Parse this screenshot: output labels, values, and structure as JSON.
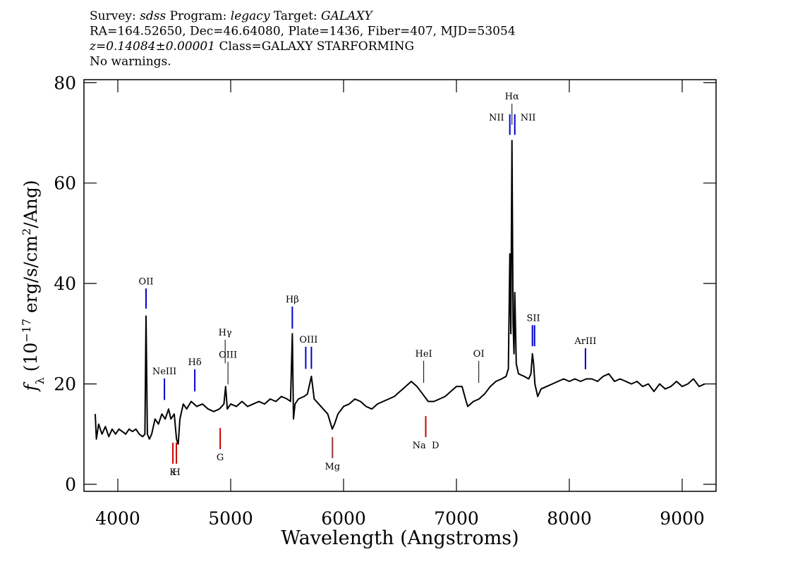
{
  "chart_data": {
    "type": "line",
    "header": [
      [
        {
          "text": "Survey: "
        },
        {
          "text": "sdss",
          "italic": true
        },
        {
          "text": " Program: "
        },
        {
          "text": "legacy",
          "italic": true
        },
        {
          "text": " Target: "
        },
        {
          "text": "GALAXY",
          "italic": true
        }
      ],
      [
        {
          "text": "RA=164.52650, Dec=46.64080, Plate=1436, Fiber=407, MJD=53054"
        }
      ],
      [
        {
          "text": "z=0.14084±0.00001",
          "italic": true
        },
        {
          "text": " Class=GALAXY STARFORMING"
        }
      ],
      [
        {
          "text": "No warnings."
        }
      ]
    ],
    "xlabel": "Wavelength (Angstroms)",
    "ylabel": [
      {
        "text": "f",
        "italic": true
      },
      {
        "text": "λ",
        "shift": "sub"
      },
      {
        "text": " (10"
      },
      {
        "text": "−17",
        "shift": "super"
      },
      {
        "text": " erg/s/cm"
      },
      {
        "text": "2",
        "shift": "super"
      },
      {
        "text": "/Ang)"
      }
    ],
    "xlim": [
      3700,
      9300
    ],
    "ylim": [
      -1.4,
      80.6
    ],
    "xticks": [
      4000,
      5000,
      6000,
      7000,
      8000,
      9000
    ],
    "yticks": [
      0,
      20,
      40,
      60,
      80
    ],
    "color": "#000000",
    "x": [
      3800,
      3810,
      3830,
      3860,
      3890,
      3920,
      3950,
      3980,
      4010,
      4040,
      4070,
      4100,
      4130,
      4160,
      4190,
      4220,
      4240,
      4250,
      4262,
      4280,
      4300,
      4330,
      4360,
      4390,
      4420,
      4450,
      4470,
      4500,
      4520,
      4535,
      4550,
      4580,
      4610,
      4650,
      4700,
      4750,
      4800,
      4850,
      4900,
      4940,
      4955,
      4970,
      5000,
      5050,
      5100,
      5150,
      5200,
      5250,
      5300,
      5350,
      5400,
      5450,
      5500,
      5530,
      5546,
      5556,
      5570,
      5600,
      5650,
      5680,
      5715,
      5740,
      5780,
      5820,
      5860,
      5900,
      5920,
      5950,
      6000,
      6050,
      6100,
      6150,
      6200,
      6250,
      6300,
      6350,
      6400,
      6450,
      6500,
      6550,
      6600,
      6650,
      6700,
      6750,
      6800,
      6850,
      6900,
      6950,
      7000,
      7050,
      7080,
      7100,
      7150,
      7200,
      7250,
      7300,
      7350,
      7400,
      7440,
      7460,
      7473,
      7482,
      7492,
      7502,
      7510,
      7517,
      7530,
      7550,
      7600,
      7640,
      7660,
      7673,
      7684,
      7695,
      7720,
      7750,
      7800,
      7850,
      7900,
      7950,
      8000,
      8050,
      8100,
      8150,
      8200,
      8250,
      8300,
      8350,
      8400,
      8450,
      8500,
      8550,
      8600,
      8650,
      8700,
      8750,
      8800,
      8850,
      8900,
      8950,
      9000,
      9050,
      9100,
      9150,
      9200
    ],
    "values": [
      14,
      9,
      12,
      10,
      11.5,
      9.5,
      11,
      10,
      11,
      10.5,
      10,
      11,
      10.5,
      11,
      10,
      9.5,
      10,
      33.5,
      10,
      9,
      10,
      13,
      12,
      14,
      13,
      15,
      13,
      14,
      9,
      8,
      13,
      16,
      15,
      16.5,
      15.5,
      16,
      15,
      14.5,
      15,
      16,
      19.5,
      15,
      16,
      15.5,
      16.5,
      15.5,
      16,
      16.5,
      16,
      17,
      16.5,
      17.5,
      17,
      16.5,
      30,
      13,
      16,
      17,
      17.5,
      18,
      21.5,
      17,
      16,
      15,
      14,
      11,
      12,
      14,
      15.5,
      16,
      17,
      16.5,
      15.5,
      15,
      16,
      16.5,
      17,
      17.5,
      18.5,
      19.5,
      20.5,
      19.5,
      18,
      16.5,
      16.5,
      17,
      17.5,
      18.5,
      19.5,
      19.5,
      17,
      15.5,
      16.5,
      17,
      18,
      19.5,
      20.5,
      21,
      21.5,
      23,
      45.9,
      30,
      68.5,
      32,
      26,
      38.2,
      24,
      22,
      21.5,
      21,
      22,
      26,
      24,
      20,
      17.5,
      19,
      19.5,
      20,
      20.5,
      21,
      20.5,
      21,
      20.5,
      21,
      21,
      20.5,
      21.5,
      22,
      20.5,
      21,
      20.5,
      20,
      20.5,
      19.5,
      20,
      18.5,
      20,
      19,
      19.5,
      20.5,
      19.5,
      20,
      21,
      19.5,
      20
    ],
    "lines": [
      {
        "label": "OII",
        "x": 4250,
        "y": [
          35.0,
          39.0
        ],
        "color": "#0000cc"
      },
      {
        "label": "NeIII",
        "x": 4413,
        "y": [
          16.8,
          21.1
        ],
        "color": "#0000cc"
      },
      {
        "label": "Hδ",
        "x": 4682,
        "y": [
          18.5,
          22.9
        ],
        "color": "#0000cc"
      },
      {
        "label": "Hγ",
        "x": 4951,
        "y": [
          24.1,
          28.8
        ],
        "color": "#000000"
      },
      {
        "label": "OIII",
        "x": 4976,
        "y": [
          19.9,
          24.4
        ],
        "color": "#000000"
      },
      {
        "label": "Hβ",
        "x": 5546,
        "y": [
          31.0,
          35.4
        ],
        "color": "#0000cc"
      },
      {
        "label": "OIII",
        "x": 5690,
        "x_marks": [
          5665,
          5715
        ],
        "y": [
          23.0,
          27.4
        ],
        "color": "#0000cc"
      },
      {
        "label": "HeI",
        "x": 6710,
        "y": [
          20.2,
          24.6
        ],
        "color": "#000000"
      },
      {
        "label": "OI",
        "x": 7198,
        "y": [
          20.2,
          24.6
        ],
        "color": "#000000"
      },
      {
        "label": "NII",
        "x": 7473,
        "y": [
          69.6,
          73.7
        ],
        "color": "#0000cc",
        "align": "left"
      },
      {
        "label": "Hα",
        "x": 7492,
        "y": [
          71.6,
          75.8
        ],
        "color": "#000000"
      },
      {
        "label": "NII",
        "x": 7517,
        "y": [
          69.6,
          73.7
        ],
        "color": "#0000cc",
        "align": "right"
      },
      {
        "label": "SII",
        "x": 7682,
        "x_marks": [
          7673,
          7692
        ],
        "y": [
          27.5,
          31.7
        ],
        "color": "#0000cc"
      },
      {
        "label": "ArIII",
        "x": 8143,
        "y": [
          22.9,
          27.1
        ],
        "color": "#0000cc"
      },
      {
        "label": "K",
        "x": 4488,
        "y": [
          4.1,
          8.3
        ],
        "color": "#cc0000",
        "absorption": true
      },
      {
        "label": "H",
        "x": 4519,
        "y": [
          4.1,
          8.3
        ],
        "color": "#cc0000",
        "absorption": true
      },
      {
        "label": "G",
        "x": 4907,
        "y": [
          7.0,
          11.2
        ],
        "color": "#cc0000",
        "absorption": true
      },
      {
        "label": "Mg",
        "x": 5902,
        "y": [
          5.2,
          9.4
        ],
        "color": "#993333",
        "absorption": true
      },
      {
        "label": "Na  D",
        "x": 6728,
        "y": [
          9.4,
          13.6
        ],
        "color": "#cc0000",
        "absorption": true
      }
    ]
  }
}
